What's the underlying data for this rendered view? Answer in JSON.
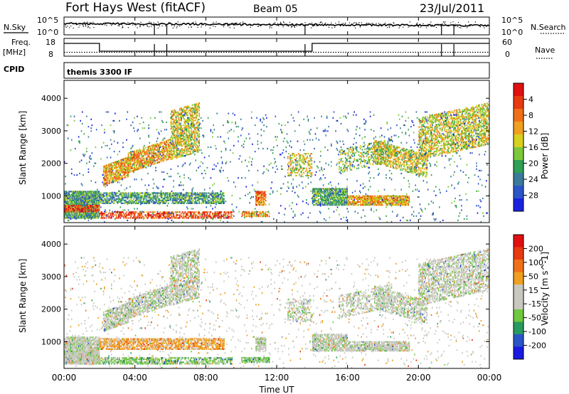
{
  "header": {
    "station": "Fort Hays West (fitACF)",
    "beam": "Beam 05",
    "date": "23/Jul/2011"
  },
  "panels": {
    "nsky_label": "N.Sky",
    "nsky_ticks": [
      "10^5",
      "10^0"
    ],
    "nsearch_label": "N.Search",
    "nsearch_ticks": [
      "10^5",
      "10^0"
    ],
    "freq_label": "Freq.",
    "freq_unit": "[MHz]",
    "freq_ticks": [
      "18",
      "8"
    ],
    "nave_label": "Nave",
    "nave_ticks": [
      "60",
      "0"
    ],
    "cpid_label": "CPID",
    "cpid_value": "themis 3300 IF"
  },
  "chart_data": [
    {
      "type": "heatmap",
      "name": "power",
      "ylabel": "Slant Range [km]",
      "xlabel": "Time UT",
      "yticks": [
        "1000",
        "2000",
        "3000",
        "4000"
      ],
      "xticks": [
        "00:00",
        "04:00",
        "08:00",
        "12:00",
        "16:00",
        "20:00",
        "00:00"
      ],
      "ylim": [
        180,
        4550
      ],
      "xlim_hours": [
        0,
        24
      ],
      "colorbar": {
        "label": "Power [dB]",
        "ticks": [
          "4",
          "8",
          "12",
          "16",
          "20",
          "24",
          "28"
        ],
        "colors": [
          "#1a22e0",
          "#2d55c8",
          "#3c7a9a",
          "#2fa055",
          "#7cc83a",
          "#d8d020",
          "#f0a020",
          "#f07018",
          "#e83a10",
          "#e01010"
        ]
      }
    },
    {
      "type": "heatmap",
      "name": "velocity",
      "ylabel": "Slant Range [km]",
      "xlabel": "Time UT",
      "yticks": [
        "1000",
        "2000",
        "3000",
        "4000"
      ],
      "xticks": [
        "00:00",
        "04:00",
        "08:00",
        "12:00",
        "16:00",
        "20:00",
        "00:00"
      ],
      "ylim": [
        180,
        4550
      ],
      "xlim_hours": [
        0,
        24
      ],
      "colorbar": {
        "label": "Velocity [m s^-1]",
        "ticks": [
          "200",
          "100",
          "50",
          "15",
          "-15",
          "-50",
          "-100",
          "-200"
        ],
        "colors": [
          "#1a1ae0",
          "#2a55c8",
          "#2a9a60",
          "#70c840",
          "#c8c8c0",
          "#c8c8c0",
          "#f0a020",
          "#f07018",
          "#e83a10",
          "#e01010"
        ]
      }
    }
  ]
}
